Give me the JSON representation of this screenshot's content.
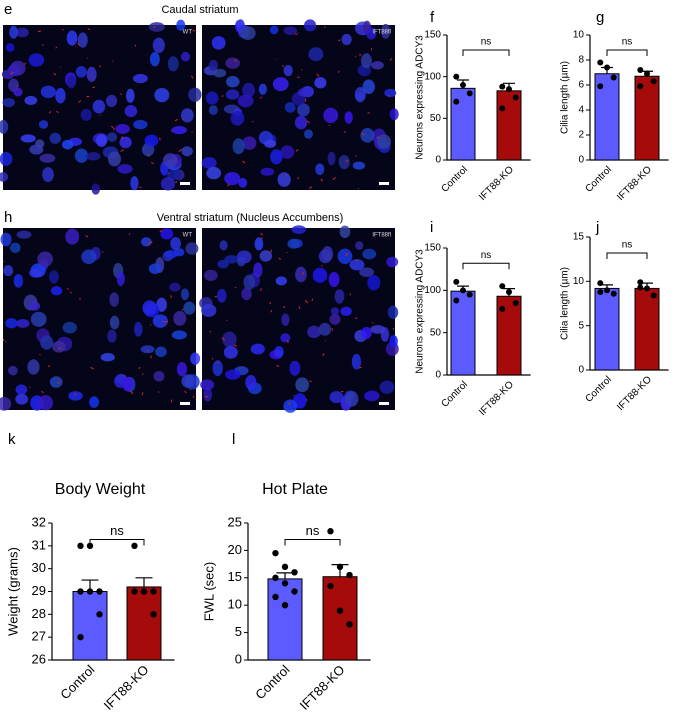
{
  "image_panels": [
    {
      "label": "e",
      "title": "Caudal striatum",
      "images": [
        "WT",
        "IFT88fl"
      ]
    },
    {
      "label": "h",
      "title": "Ventral striatum (Nucleus Accumbens)",
      "images": [
        "WT",
        "IFT88fl"
      ]
    }
  ],
  "chart_data": [
    {
      "type": "bar",
      "label": "f",
      "y_label": "Neurons expressing ADCY3",
      "categories": [
        "Control",
        "IFT88-KO"
      ],
      "values": [
        86,
        83
      ],
      "errors": [
        10,
        9
      ],
      "points": [
        [
          100,
          90,
          80,
          70
        ],
        [
          88,
          85,
          75,
          62
        ]
      ],
      "colors": [
        "#5b5bff",
        "#a50b0b"
      ],
      "ylim": [
        0,
        150
      ],
      "yticks": [
        0,
        50,
        100,
        150
      ],
      "annotation": "ns"
    },
    {
      "type": "bar",
      "label": "g",
      "y_label": "Cilia length (µm)",
      "categories": [
        "Control",
        "IFT88-KO"
      ],
      "values": [
        6.9,
        6.7
      ],
      "errors": [
        0.5,
        0.4
      ],
      "points": [
        [
          7.8,
          7.4,
          6.6,
          5.9
        ],
        [
          7.2,
          6.9,
          6.3,
          5.9
        ]
      ],
      "colors": [
        "#5b5bff",
        "#a50b0b"
      ],
      "ylim": [
        0,
        10
      ],
      "yticks": [
        0,
        2,
        4,
        6,
        8,
        10
      ],
      "annotation": "ns"
    },
    {
      "type": "bar",
      "label": "i",
      "y_label": "Neurons expressing ADCY3",
      "categories": [
        "Control",
        "IFT88-KO"
      ],
      "values": [
        99,
        93
      ],
      "errors": [
        6,
        9
      ],
      "points": [
        [
          110,
          100,
          95,
          88
        ],
        [
          105,
          98,
          85,
          78
        ]
      ],
      "colors": [
        "#5b5bff",
        "#a50b0b"
      ],
      "ylim": [
        0,
        150
      ],
      "yticks": [
        0,
        50,
        100,
        150
      ],
      "annotation": "ns"
    },
    {
      "type": "bar",
      "label": "j",
      "y_label": "Cilia length (µm)",
      "categories": [
        "Control",
        "IFT88-KO"
      ],
      "values": [
        9.2,
        9.2
      ],
      "errors": [
        0.4,
        0.6
      ],
      "points": [
        [
          9.8,
          9.0,
          8.6,
          8.8
        ],
        [
          9.9,
          9.2,
          8.4,
          9.3
        ]
      ],
      "colors": [
        "#5b5bff",
        "#a50b0b"
      ],
      "ylim": [
        0,
        15
      ],
      "yticks": [
        0,
        5,
        10,
        15
      ],
      "annotation": "ns"
    },
    {
      "type": "bar",
      "label": "k",
      "title": "Body Weight",
      "y_label": "Weight (grams)",
      "categories": [
        "Control",
        "IFT88-KO"
      ],
      "values": [
        29.0,
        29.2
      ],
      "errors": [
        0.5,
        0.4
      ],
      "points": [
        [
          31,
          31,
          29,
          29,
          29,
          28,
          27
        ],
        [
          31,
          29,
          29,
          29,
          29,
          28
        ]
      ],
      "colors": [
        "#5b5bff",
        "#a50b0b"
      ],
      "ylim": [
        26,
        32
      ],
      "yticks": [
        26,
        27,
        28,
        29,
        30,
        31,
        32
      ],
      "annotation": "ns"
    },
    {
      "type": "bar",
      "label": "l",
      "title": "Hot Plate",
      "y_label": "FWL (sec)",
      "categories": [
        "Control",
        "IFT88-KO"
      ],
      "values": [
        14.8,
        15.2
      ],
      "errors": [
        1.1,
        2.2
      ],
      "points": [
        [
          19.5,
          17,
          16,
          15,
          14,
          12.5,
          11.5,
          10
        ],
        [
          23.5,
          17,
          15.5,
          13.5,
          9,
          6.5
        ]
      ],
      "colors": [
        "#5b5bff",
        "#a50b0b"
      ],
      "ylim": [
        0,
        25
      ],
      "yticks": [
        0,
        5,
        10,
        15,
        20,
        25
      ],
      "annotation": "ns"
    }
  ]
}
